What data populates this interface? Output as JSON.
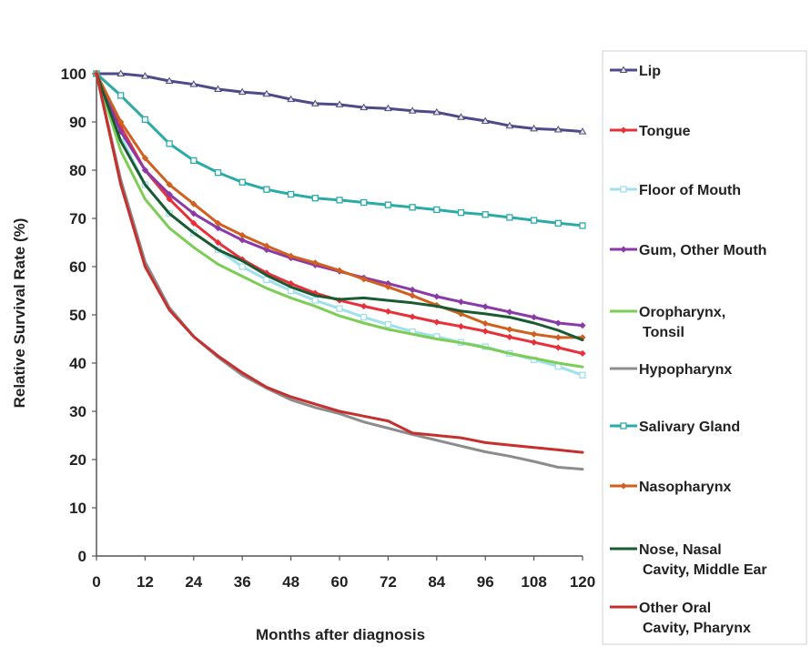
{
  "chart_data": {
    "type": "line",
    "title": "",
    "xlabel": "Months after diagnosis",
    "ylabel": "Relative Survival Rate (%)",
    "xlim": [
      0,
      120
    ],
    "ylim": [
      0,
      100
    ],
    "xticks": [
      0,
      12,
      24,
      36,
      48,
      60,
      72,
      84,
      96,
      108,
      120
    ],
    "yticks": [
      0,
      10,
      20,
      30,
      40,
      50,
      60,
      70,
      80,
      90,
      100
    ],
    "grid": false,
    "legend_position": "right",
    "x": [
      0,
      6,
      12,
      18,
      24,
      30,
      36,
      42,
      48,
      54,
      60,
      66,
      72,
      78,
      84,
      90,
      96,
      102,
      108,
      114,
      120
    ],
    "series": [
      {
        "name": "Lip",
        "color": "#4b4a8a",
        "marker": "triangle",
        "legend_lines": [
          "Lip"
        ],
        "values": [
          100,
          100,
          99.5,
          98.5,
          97.8,
          96.8,
          96.2,
          95.8,
          94.7,
          93.8,
          93.6,
          93.0,
          92.8,
          92.3,
          92.0,
          91.0,
          90.2,
          89.2,
          88.6,
          88.4,
          88.0
        ]
      },
      {
        "name": "Tongue",
        "color": "#e8303a",
        "marker": "diamond",
        "legend_lines": [
          "Tongue"
        ],
        "values": [
          100,
          89,
          80,
          74,
          69,
          65,
          61.5,
          58.7,
          56.5,
          54.5,
          53.0,
          51.8,
          50.7,
          49.6,
          48.5,
          47.6,
          46.6,
          45.4,
          44.3,
          43.2,
          42.0
        ]
      },
      {
        "name": "Floor of Mouth",
        "color": "#9fe0ec",
        "marker": "square",
        "legend_lines": [
          "Floor of Mouth"
        ],
        "values": [
          100,
          87,
          77,
          71,
          67,
          63.5,
          60,
          57.3,
          55.0,
          53.0,
          51.3,
          49.5,
          48.0,
          46.5,
          45.5,
          44.3,
          43.4,
          42.0,
          40.7,
          39.3,
          37.5
        ]
      },
      {
        "name": "Gum, Other Mouth",
        "color": "#8a3aa7",
        "marker": "diamond",
        "legend_lines": [
          "Gum, Other Mouth"
        ],
        "values": [
          100,
          88,
          80,
          75,
          71,
          68,
          65.5,
          63.5,
          61.8,
          60.3,
          59.0,
          57.7,
          56.5,
          55.2,
          53.8,
          52.7,
          51.7,
          50.6,
          49.5,
          48.3,
          47.8
        ]
      },
      {
        "name": "Oropharynx, Tonsil",
        "color": "#7ccd55",
        "marker": "none",
        "legend_lines": [
          "Oropharynx,",
          "Tonsil"
        ],
        "values": [
          100,
          84,
          74,
          68,
          64,
          60.5,
          58,
          55.5,
          53.5,
          51.8,
          49.8,
          48.3,
          47.0,
          46.0,
          45.0,
          44.2,
          43.2,
          42.0,
          41.0,
          40.0,
          39.2
        ]
      },
      {
        "name": "Hypopharynx",
        "color": "#8c8c8c",
        "marker": "none",
        "legend_lines": [
          "Hypopharynx"
        ],
        "values": [
          100,
          78,
          61,
          51.5,
          45.5,
          41.2,
          37.5,
          34.8,
          32.4,
          30.8,
          29.5,
          27.8,
          26.5,
          25.2,
          24.0,
          22.8,
          21.6,
          20.7,
          19.6,
          18.4,
          18.0
        ]
      },
      {
        "name": "Salivary Gland",
        "color": "#2aaba8",
        "marker": "square",
        "legend_lines": [
          "Salivary Gland"
        ],
        "values": [
          100,
          95.5,
          90.5,
          85.5,
          82,
          79.5,
          77.5,
          76,
          75,
          74.2,
          73.8,
          73.3,
          72.8,
          72.3,
          71.8,
          71.2,
          70.8,
          70.2,
          69.6,
          69.0,
          68.5
        ]
      },
      {
        "name": "Nasopharynx",
        "color": "#d06020",
        "marker": "diamond",
        "legend_lines": [
          "Nasopharynx"
        ],
        "values": [
          100,
          90,
          82.5,
          77,
          73,
          69,
          66.5,
          64.3,
          62.2,
          60.8,
          59.2,
          57.4,
          55.8,
          54.0,
          52.0,
          50.2,
          48.2,
          47.0,
          46.0,
          45.3,
          45.3
        ]
      },
      {
        "name": "Nose, Nasal Cavity, Middle Ear",
        "color": "#1a5a32",
        "marker": "none",
        "legend_lines": [
          "Nose, Nasal",
          "Cavity, Middle Ear"
        ],
        "values": [
          100,
          86,
          77,
          71,
          67,
          63.5,
          61.2,
          58.2,
          55.8,
          54.0,
          53.2,
          53.5,
          53.0,
          52.5,
          51.8,
          50.8,
          50.2,
          49.5,
          48.3,
          46.8,
          44.8
        ]
      },
      {
        "name": "Other Oral Cavity, Pharynx",
        "color": "#c5302e",
        "marker": "none",
        "legend_lines": [
          "Other Oral",
          "Cavity, Pharynx"
        ],
        "values": [
          100,
          77,
          60,
          51,
          45.5,
          41.5,
          38,
          35,
          33,
          31.5,
          30,
          29,
          28,
          25.5,
          25,
          24.5,
          23.5,
          23,
          22.5,
          22,
          21.5
        ]
      }
    ]
  }
}
